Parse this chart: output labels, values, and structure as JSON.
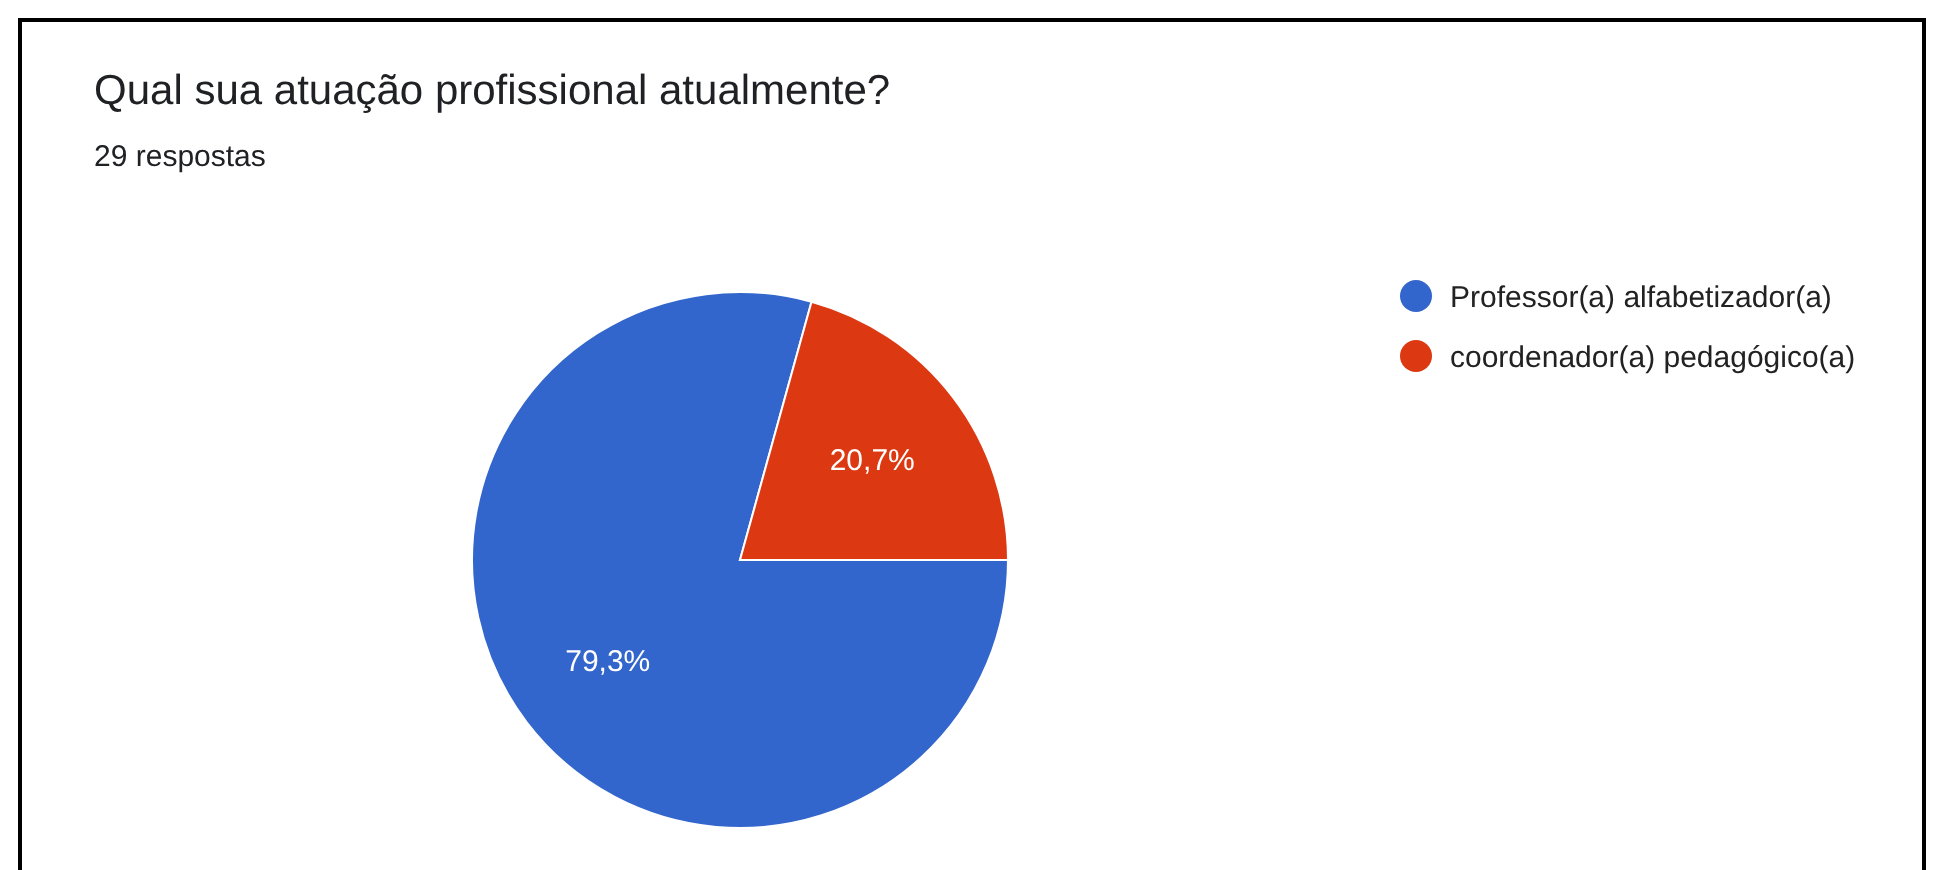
{
  "chart_data": {
    "type": "pie",
    "title": "Qual sua atuação profissional atualmente?",
    "subtitle": "29 respostas",
    "categories": [
      "Professor(a) alfabetizador(a)",
      "coordenador(a) pedagógico(a)"
    ],
    "values": [
      79.3,
      20.7
    ],
    "colors": [
      "#3366cc",
      "#dc3912"
    ],
    "value_labels": [
      "79,3%",
      "20,7%"
    ],
    "legend": "right"
  }
}
